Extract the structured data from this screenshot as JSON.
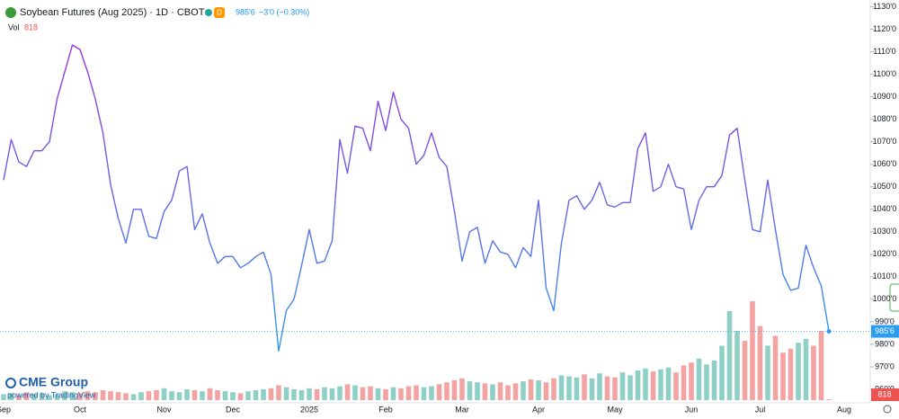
{
  "chart_data": {
    "type": "line",
    "title": "Soybean Futures (Aug 2025) · 1D · CBOT",
    "badge": "D",
    "last_price": {
      "value": 985.75,
      "label": "985'6"
    },
    "change": "−3'0 (−0.30%)",
    "volume_label": "Vol",
    "branding": {
      "name": "CME Group",
      "powered": "powered by TradingView"
    },
    "gradient": [
      "#a030d8",
      "#2b9ef2"
    ],
    "volume_colors": {
      "up": "#8fd0c6",
      "down": "#f4a3a3"
    },
    "grid": false,
    "categories": [
      "Sep",
      null,
      null,
      null,
      null,
      null,
      null,
      null,
      null,
      null,
      "Oct",
      null,
      null,
      null,
      null,
      null,
      null,
      null,
      null,
      null,
      null,
      "Nov",
      null,
      null,
      null,
      null,
      null,
      null,
      null,
      null,
      "Dec",
      null,
      null,
      null,
      null,
      null,
      null,
      null,
      null,
      null,
      "2025",
      null,
      null,
      null,
      null,
      null,
      null,
      null,
      null,
      null,
      "Feb",
      null,
      null,
      null,
      null,
      null,
      null,
      null,
      null,
      null,
      "Mar",
      null,
      null,
      null,
      null,
      null,
      null,
      null,
      null,
      null,
      "Apr",
      null,
      null,
      null,
      null,
      null,
      null,
      null,
      null,
      null,
      "May",
      null,
      null,
      null,
      null,
      null,
      null,
      null,
      null,
      null,
      "Jun",
      null,
      null,
      null,
      null,
      null,
      null,
      null,
      null,
      "Jul",
      null,
      null,
      null,
      null,
      null,
      null,
      null,
      null,
      null,
      null,
      "Aug"
    ],
    "values": [
      1053,
      1071,
      1061,
      1059,
      1066,
      1066,
      1070,
      1089,
      1101,
      1113,
      1111,
      1101,
      1089,
      1074,
      1051,
      1036,
      1025,
      1040,
      1040,
      1028,
      1027,
      1039,
      1044,
      1057,
      1059,
      1031,
      1038,
      1025,
      1016,
      1019,
      1019,
      1014,
      1016,
      1019,
      1021,
      1011,
      977,
      995,
      1000,
      1015,
      1031,
      1016,
      1017,
      1026,
      1071,
      1056,
      1077,
      1076,
      1066,
      1088,
      1075,
      1092,
      1080,
      1076,
      1060,
      1064,
      1074,
      1063,
      1059,
      1039,
      1017,
      1030,
      1032,
      1016,
      1026,
      1021,
      1020,
      1014,
      1023,
      1019,
      1044,
      1005,
      995,
      1025,
      1044,
      1046,
      1040,
      1044,
      1052,
      1042,
      1041,
      1043,
      1043,
      1067,
      1074,
      1048,
      1050,
      1060,
      1050,
      1049,
      1031,
      1044,
      1050,
      1050,
      1055,
      1073,
      1076,
      1053,
      1031,
      1030,
      1053,
      1031,
      1011,
      1004,
      1005,
      1024,
      1014,
      1006,
      985.75,
      null,
      null
    ],
    "volume": [
      6000,
      7000,
      5000,
      8000,
      6000,
      7000,
      5000,
      6000,
      9000,
      8000,
      7000,
      9000,
      8000,
      10000,
      9000,
      8000,
      7000,
      6000,
      8000,
      9000,
      10000,
      12000,
      9000,
      8000,
      11000,
      10000,
      9000,
      12000,
      10000,
      9000,
      8000,
      7000,
      9000,
      10000,
      11000,
      12000,
      15000,
      13000,
      11000,
      10000,
      12000,
      11000,
      13000,
      12000,
      14000,
      16000,
      15000,
      13000,
      14000,
      12000,
      11000,
      13000,
      12000,
      14000,
      15000,
      13000,
      14000,
      16000,
      18000,
      20000,
      22000,
      19000,
      18000,
      17000,
      16000,
      18000,
      15000,
      17000,
      19000,
      21000,
      20000,
      18000,
      22000,
      25000,
      24000,
      23000,
      26000,
      22000,
      27000,
      24000,
      23000,
      28000,
      25000,
      30000,
      32000,
      29000,
      31000,
      33000,
      28000,
      35000,
      38000,
      42000,
      36000,
      40000,
      55000,
      90000,
      70000,
      60000,
      100000,
      75000,
      55000,
      65000,
      48000,
      52000,
      58000,
      62000,
      55000,
      70000,
      818,
      null,
      null
    ],
    "ylim": [
      954,
      1133
    ],
    "yticks": [
      {
        "value": 960,
        "label": "960'0"
      },
      {
        "value": 970,
        "label": "970'0"
      },
      {
        "value": 980,
        "label": "980'0"
      },
      {
        "value": 990,
        "label": "990'0"
      },
      {
        "value": 1000,
        "label": "1000'0"
      },
      {
        "value": 1010,
        "label": "1010'0"
      },
      {
        "value": 1020,
        "label": "1020'0"
      },
      {
        "value": 1030,
        "label": "1030'0"
      },
      {
        "value": 1040,
        "label": "1040'0"
      },
      {
        "value": 1050,
        "label": "1050'0"
      },
      {
        "value": 1060,
        "label": "1060'0"
      },
      {
        "value": 1070,
        "label": "1070'0"
      },
      {
        "value": 1080,
        "label": "1080'0"
      },
      {
        "value": 1090,
        "label": "1090'0"
      },
      {
        "value": 1100,
        "label": "1100'0"
      },
      {
        "value": 1110,
        "label": "1110'0"
      },
      {
        "value": 1120,
        "label": "1120'0"
      },
      {
        "value": 1130,
        "label": "1130'0"
      }
    ]
  }
}
